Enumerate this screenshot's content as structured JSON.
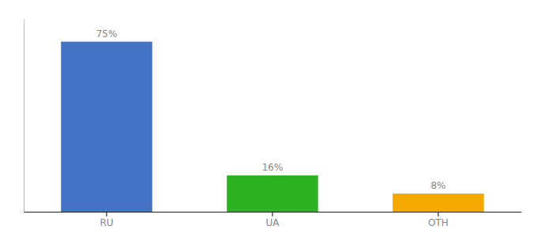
{
  "chart_data": {
    "type": "bar",
    "categories": [
      "RU",
      "UA",
      "OTH"
    ],
    "values": [
      75,
      16,
      8
    ],
    "value_labels": [
      "75%",
      "16%",
      "8%"
    ],
    "colors": [
      "#4472c4",
      "#2db224",
      "#f5a800"
    ],
    "ylim": [
      0,
      85
    ],
    "data_labels": true,
    "tick_labels": "x",
    "grid": false
  }
}
